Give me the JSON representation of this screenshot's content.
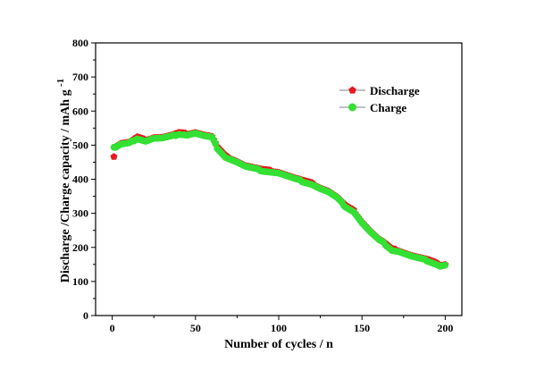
{
  "chart_data": {
    "type": "scatter",
    "title": "",
    "xlabel": "Number of cycles / n",
    "ylabel": "Discharge /Charge capacity / mAh g",
    "ylabel_superscript": "-1",
    "xlim": [
      -10,
      210
    ],
    "ylim": [
      0,
      800
    ],
    "x_ticks": [
      0,
      50,
      100,
      150,
      200
    ],
    "y_ticks": [
      0,
      100,
      200,
      300,
      400,
      500,
      600,
      700,
      800
    ],
    "grid": false,
    "legend_position": "top-right",
    "series": [
      {
        "name": "Discharge",
        "color": "#e8191e",
        "marker": "pentagon",
        "offset": 3,
        "first_point": [
          1,
          466
        ],
        "anchors": [
          [
            2,
            493
          ],
          [
            5,
            502
          ],
          [
            10,
            505
          ],
          [
            15,
            520
          ],
          [
            20,
            512
          ],
          [
            25,
            520
          ],
          [
            30,
            520
          ],
          [
            35,
            525
          ],
          [
            40,
            533
          ],
          [
            45,
            530
          ],
          [
            50,
            535
          ],
          [
            55,
            527
          ],
          [
            60,
            522
          ],
          [
            63,
            492
          ],
          [
            68,
            465
          ],
          [
            75,
            450
          ],
          [
            80,
            437
          ],
          [
            90,
            425
          ],
          [
            100,
            418
          ],
          [
            110,
            400
          ],
          [
            120,
            385
          ],
          [
            125,
            372
          ],
          [
            130,
            362
          ],
          [
            135,
            345
          ],
          [
            140,
            320
          ],
          [
            145,
            305
          ],
          [
            150,
            272
          ],
          [
            155,
            245
          ],
          [
            160,
            222
          ],
          [
            163,
            213
          ],
          [
            168,
            192
          ],
          [
            172,
            188
          ],
          [
            180,
            173
          ],
          [
            190,
            160
          ],
          [
            195,
            150
          ],
          [
            197,
            145
          ],
          [
            200,
            148
          ]
        ]
      },
      {
        "name": "Charge",
        "color": "#33e033",
        "marker": "circle",
        "offset": 0,
        "first_point": [
          1,
          494
        ],
        "anchors": [
          [
            2,
            493
          ],
          [
            5,
            502
          ],
          [
            10,
            505
          ],
          [
            15,
            520
          ],
          [
            20,
            512
          ],
          [
            25,
            520
          ],
          [
            30,
            520
          ],
          [
            35,
            525
          ],
          [
            40,
            533
          ],
          [
            45,
            530
          ],
          [
            50,
            535
          ],
          [
            55,
            527
          ],
          [
            60,
            522
          ],
          [
            63,
            492
          ],
          [
            68,
            465
          ],
          [
            75,
            450
          ],
          [
            80,
            437
          ],
          [
            90,
            425
          ],
          [
            100,
            418
          ],
          [
            110,
            400
          ],
          [
            120,
            385
          ],
          [
            125,
            372
          ],
          [
            130,
            362
          ],
          [
            135,
            345
          ],
          [
            140,
            320
          ],
          [
            145,
            305
          ],
          [
            150,
            272
          ],
          [
            155,
            245
          ],
          [
            160,
            222
          ],
          [
            163,
            213
          ],
          [
            168,
            192
          ],
          [
            172,
            188
          ],
          [
            180,
            173
          ],
          [
            190,
            160
          ],
          [
            195,
            150
          ],
          [
            197,
            145
          ],
          [
            200,
            148
          ]
        ]
      }
    ]
  }
}
